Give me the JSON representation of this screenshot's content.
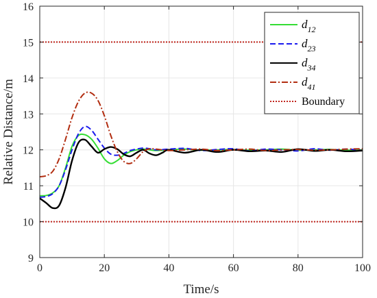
{
  "chart_data": {
    "type": "line",
    "title": "",
    "xlabel": "Time/s",
    "ylabel": "Relative Distance/m",
    "xlim": [
      0,
      100
    ],
    "ylim": [
      9,
      16
    ],
    "xticks": [
      0,
      20,
      40,
      60,
      80,
      100
    ],
    "yticks": [
      9,
      10,
      11,
      12,
      13,
      14,
      15,
      16
    ],
    "grid": true,
    "legend_position": "top-right",
    "series": [
      {
        "name": "d12",
        "name_main": "d",
        "name_sub": "12",
        "color": "#33dd33",
        "style": "solid",
        "x": [
          0,
          2,
          4,
          6,
          8,
          10,
          12,
          14,
          16,
          18,
          20,
          22,
          24,
          26,
          28,
          30,
          32,
          34,
          36,
          40,
          45,
          50,
          55,
          60,
          65,
          70,
          75,
          80,
          85,
          90,
          95,
          100
        ],
        "y": [
          10.72,
          10.73,
          10.8,
          11.0,
          11.5,
          12.1,
          12.4,
          12.42,
          12.3,
          12.05,
          11.75,
          11.62,
          11.7,
          11.85,
          11.95,
          12.0,
          12.02,
          12.0,
          11.98,
          12.0,
          12.02,
          11.99,
          12.0,
          12.01,
          11.99,
          12.0,
          12.02,
          11.99,
          12.0,
          12.01,
          11.99,
          12.0
        ]
      },
      {
        "name": "d23",
        "name_main": "d",
        "name_sub": "23",
        "color": "#1a1aee",
        "style": "dashed",
        "x": [
          0,
          2,
          4,
          6,
          8,
          10,
          12,
          14,
          16,
          18,
          20,
          22,
          24,
          26,
          28,
          30,
          32,
          34,
          36,
          40,
          45,
          50,
          55,
          60,
          65,
          70,
          75,
          80,
          85,
          90,
          95,
          100
        ],
        "y": [
          10.68,
          10.7,
          10.78,
          11.0,
          11.45,
          12.0,
          12.45,
          12.65,
          12.55,
          12.3,
          12.05,
          11.88,
          11.85,
          11.9,
          11.98,
          12.02,
          12.05,
          12.03,
          12.0,
          12.02,
          12.04,
          11.98,
          12.01,
          12.03,
          11.97,
          12.02,
          12.0,
          11.97,
          12.03,
          11.99,
          12.02,
          11.98
        ]
      },
      {
        "name": "d34",
        "name_main": "d",
        "name_sub": "34",
        "color": "#000000",
        "style": "solid",
        "x": [
          0,
          2,
          4,
          6,
          8,
          10,
          12,
          14,
          16,
          18,
          20,
          22,
          24,
          26,
          28,
          30,
          32,
          34,
          36,
          38,
          40,
          45,
          50,
          55,
          60,
          65,
          70,
          75,
          80,
          85,
          90,
          95,
          100
        ],
        "y": [
          10.65,
          10.52,
          10.38,
          10.45,
          10.95,
          11.7,
          12.2,
          12.28,
          12.1,
          11.92,
          12.02,
          12.08,
          12.02,
          11.88,
          11.82,
          11.92,
          12.0,
          11.9,
          11.85,
          11.92,
          12.0,
          11.92,
          12.0,
          11.94,
          12.0,
          11.96,
          11.98,
          11.94,
          12.02,
          11.97,
          12.0,
          11.96,
          11.98
        ]
      },
      {
        "name": "d41",
        "name_main": "d",
        "name_sub": "41",
        "color": "#b22d10",
        "style": "dashdot",
        "x": [
          0,
          2,
          4,
          6,
          8,
          10,
          12,
          14,
          16,
          18,
          20,
          22,
          24,
          26,
          28,
          30,
          32,
          34,
          36,
          40,
          45,
          50,
          55,
          60,
          65,
          70,
          75,
          80,
          85,
          90,
          95,
          100
        ],
        "y": [
          11.25,
          11.28,
          11.4,
          11.75,
          12.3,
          12.9,
          13.35,
          13.58,
          13.58,
          13.38,
          12.95,
          12.4,
          11.95,
          11.68,
          11.62,
          11.75,
          11.95,
          12.03,
          12.02,
          11.98,
          12.0,
          12.02,
          11.98,
          12.0,
          12.02,
          11.98,
          12.0,
          12.01,
          11.99,
          12.0,
          12.02,
          12.03
        ]
      },
      {
        "name": "Boundary",
        "color": "#c0221a",
        "style": "dotted",
        "segments": [
          {
            "x": [
              0,
              100
            ],
            "y": [
              15,
              15
            ]
          },
          {
            "x": [
              0,
              100
            ],
            "y": [
              10,
              10
            ]
          }
        ]
      }
    ]
  }
}
